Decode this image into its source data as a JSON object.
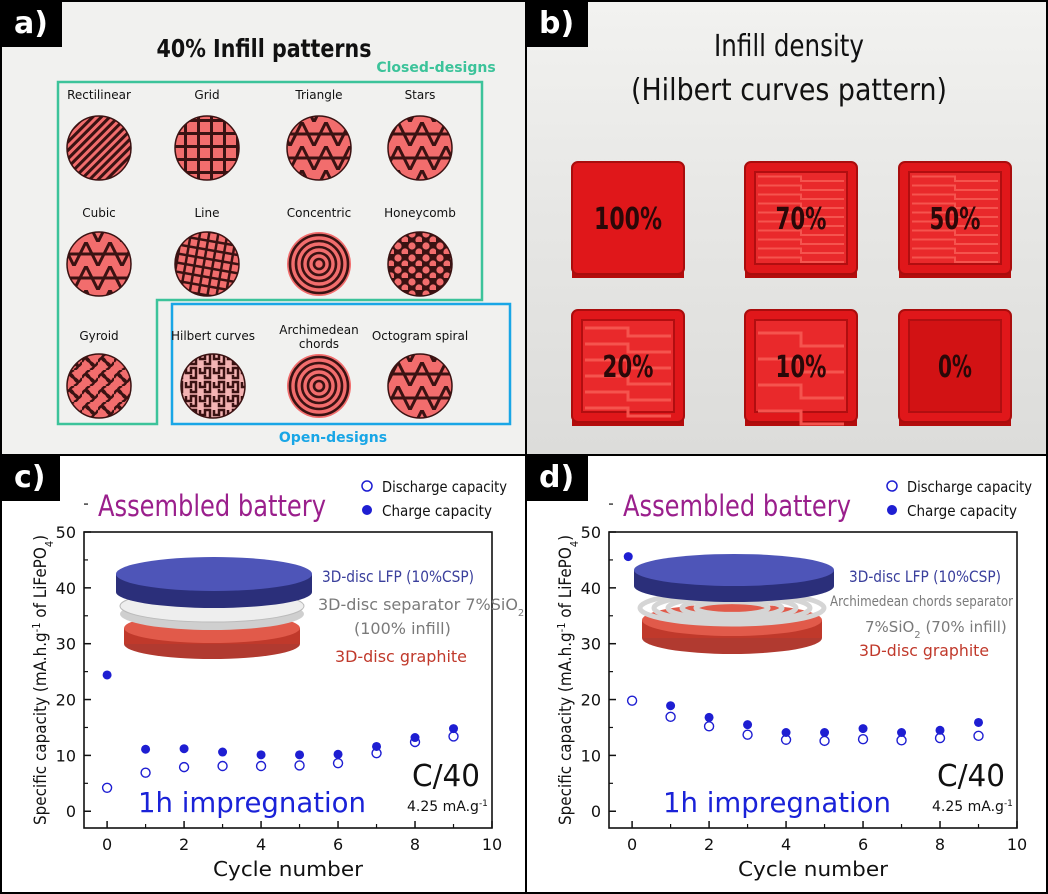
{
  "panel_a": {
    "tag": "a)",
    "title": "40% Infill patterns",
    "closed_label": "Closed-designs",
    "open_label": "Open-designs",
    "patterns": [
      "Rectilinear",
      "Grid",
      "Triangle",
      "Stars",
      "Cubic",
      "Line",
      "Concentric",
      "Honeycomb",
      "Gyroid",
      "Hilbert curves",
      "Archimedean chords",
      "Octogram spiral"
    ],
    "colors": {
      "closed": "#3cc39a",
      "open": "#19a6e6"
    }
  },
  "panel_b": {
    "tag": "b)",
    "title_line1": "Infill density",
    "title_line2": "(Hilbert curves pattern)",
    "cubes": [
      "100%",
      "70%",
      "50%",
      "20%",
      "10%",
      "0%"
    ],
    "levels": [
      1.0,
      0.7,
      0.5,
      0.2,
      0.1,
      0.0
    ]
  },
  "panel_c": {
    "tag": "c)",
    "heading": "Assembled battery",
    "legend_discharge": "Discharge capacity",
    "legend_charge": "Charge capacity",
    "layer_top": "3D-disc LFP (10%CSP)",
    "layer_mid_1": "3D-disc separator 7%SiO",
    "layer_mid_sub": "2",
    "layer_mid_2": "(100% infill)",
    "layer_bottom": "3D-disc graphite",
    "rate": "C/40",
    "rate_value": "4.25 mA.g",
    "rate_exp": "-1",
    "impregnation": "1h impregnation"
  },
  "panel_d": {
    "tag": "d)",
    "heading": "Assembled battery",
    "legend_discharge": "Discharge capacity",
    "legend_charge": "Charge capacity",
    "layer_top": "3D-disc LFP (10%CSP)",
    "layer_mid_1": "Archimedean chords separator",
    "layer_mid_2a": "7%SiO",
    "layer_mid_sub": "2",
    "layer_mid_2b": " (70% infill)",
    "layer_bottom": "3D-disc graphite",
    "rate": "C/40",
    "rate_value": "4.25 mA.g",
    "rate_exp": "-1",
    "impregnation": "1h impregnation"
  },
  "chart_data": [
    {
      "type": "scatter",
      "panel": "c",
      "xlabel": "Cycle number",
      "ylabel": "Specific capacity (mA.h.g-1 of LiFePO4)",
      "xlim": [
        -0.6,
        10
      ],
      "ylim": [
        -3,
        50
      ],
      "xticks": [
        "0",
        "2",
        "4",
        "6",
        "8",
        "10"
      ],
      "yticks": [
        "0",
        "10",
        "20",
        "30",
        "40",
        "50"
      ],
      "series": [
        {
          "name": "Discharge capacity",
          "marker": "open-circle",
          "x": [
            0,
            1,
            2,
            3,
            4,
            5,
            6,
            7,
            8,
            9
          ],
          "y": [
            4.2,
            6.9,
            7.9,
            8.1,
            8.1,
            8.2,
            8.6,
            10.4,
            12.4,
            13.4
          ]
        },
        {
          "name": "Charge capacity",
          "marker": "filled-circle",
          "x": [
            0,
            1,
            2,
            3,
            4,
            5,
            6,
            7,
            8,
            9
          ],
          "y": [
            24.4,
            11.1,
            11.2,
            10.6,
            10.1,
            10.1,
            10.2,
            11.6,
            13.2,
            14.8
          ]
        }
      ]
    },
    {
      "type": "scatter",
      "panel": "d",
      "xlabel": "Cycle number",
      "ylabel": "Specific capacity (mA.h.g-1 of LiFePO4)",
      "xlim": [
        -0.6,
        10
      ],
      "ylim": [
        -3,
        50
      ],
      "xticks": [
        "0",
        "2",
        "4",
        "6",
        "8",
        "10"
      ],
      "yticks": [
        "0",
        "10",
        "20",
        "30",
        "40",
        "50"
      ],
      "series": [
        {
          "name": "Discharge capacity",
          "marker": "open-circle",
          "x": [
            0,
            1,
            2,
            3,
            4,
            5,
            6,
            7,
            8,
            9
          ],
          "y": [
            19.8,
            16.9,
            15.2,
            13.7,
            12.8,
            12.6,
            12.9,
            12.7,
            13.1,
            13.5
          ]
        },
        {
          "name": "Charge capacity",
          "marker": "filled-circle",
          "x": [
            -0.1,
            1,
            2,
            3,
            4,
            5,
            6,
            7,
            8,
            9
          ],
          "y": [
            45.6,
            18.9,
            16.8,
            15.5,
            14.1,
            14.1,
            14.8,
            14.1,
            14.5,
            15.9
          ]
        }
      ]
    }
  ],
  "colors": {
    "marker": "#1e1ed2",
    "heading": "#9a1f8c",
    "impregnation": "#1a22d8",
    "lfp": "#3a3f9c",
    "separator": "#7a7a7a",
    "graphite": "#c0392b"
  }
}
